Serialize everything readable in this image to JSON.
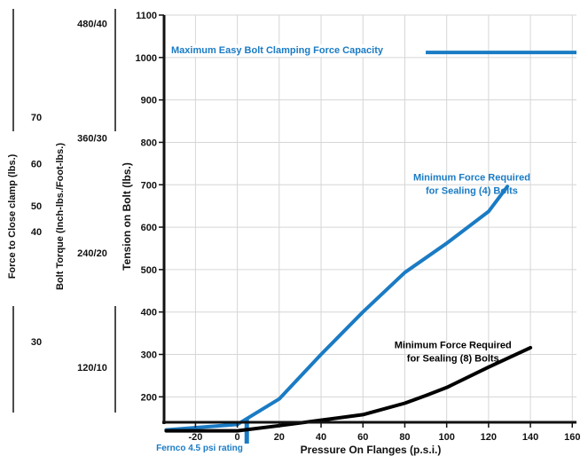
{
  "chart_data": {
    "type": "line",
    "xlabel": "Pressure On Flanges (p.s.i.)",
    "x_ticks": [
      "-20",
      "0",
      "20",
      "40",
      "60",
      "80",
      "100",
      "120",
      "140",
      "160"
    ],
    "xlim": [
      -35,
      162
    ],
    "ylabel_tension": "Tension on Bolt (lbs.)",
    "ylim_tension": [
      140,
      1100
    ],
    "y_ticks": [
      "200",
      "300",
      "400",
      "500",
      "600",
      "700",
      "800",
      "900",
      "1000",
      "1100"
    ],
    "secondary_axes": [
      {
        "label": "Bolt Torque (Inch-lbs./Foot-lbs.)",
        "ticks": [
          {
            "text": "480/40",
            "at": 1080
          },
          {
            "text": "360/30",
            "at": 810
          },
          {
            "text": "240/20",
            "at": 540
          },
          {
            "text": "120/10",
            "at": 270
          }
        ]
      },
      {
        "label": "Force to Close clamp (lbs.)",
        "ticks": [
          {
            "text": "70",
            "at": 860
          },
          {
            "text": "60",
            "at": 750
          },
          {
            "text": "50",
            "at": 650
          },
          {
            "text": "40",
            "at": 590
          },
          {
            "text": "30",
            "at": 330
          }
        ]
      }
    ],
    "series": [
      {
        "color": "#1a7bc4",
        "x": [
          -34,
          0,
          20,
          40,
          60,
          80,
          100,
          120,
          129
        ],
        "y": [
          122,
          135,
          195,
          300,
          400,
          493,
          562,
          637,
          696
        ]
      },
      {
        "color": "#000000",
        "x": [
          -34,
          0,
          20,
          40,
          60,
          80,
          90,
          100,
          120,
          140
        ],
        "y": [
          120,
          120,
          132,
          145,
          158,
          185,
          203,
          222,
          270,
          316
        ]
      }
    ],
    "annotations": [
      {
        "lines": [
          "Minimum Force Required",
          "for Sealing (4) Bolts"
        ],
        "color": "#1a7bc4",
        "x": 112,
        "y": 710
      },
      {
        "lines": [
          "Minimum Force Required",
          "for Sealing (8) Bolts"
        ],
        "color": "#000000",
        "x": 103,
        "y": 315
      },
      {
        "lines": [
          "Maximum Easy Bolt Clamping Force Capacity"
        ],
        "color": "#1a7bc4",
        "x": 5,
        "y": 1010
      }
    ],
    "reference_lines": [
      {
        "type": "horizontal",
        "y": 1012,
        "x_from": 90,
        "x_to": 162,
        "color": "#1a7bc4"
      },
      {
        "type": "vertical",
        "x": 4.5,
        "color": "#1a7bc4",
        "label": "Fernco 4.5 psi rating"
      }
    ]
  }
}
